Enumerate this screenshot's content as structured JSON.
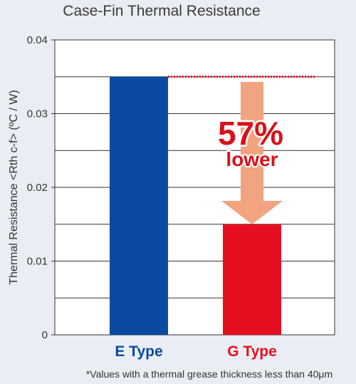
{
  "chart_data": {
    "type": "bar",
    "title": "Case-Fin Thermal Resistance",
    "ylabel": "Thermal Resistance <Rth c-f> (ºC / W)",
    "xlabel": "",
    "ylim": [
      0,
      0.04
    ],
    "yticks": [
      "0",
      "0.01",
      "0.02",
      "0.03",
      "0.04"
    ],
    "ytick_values": [
      0,
      0.01,
      0.02,
      0.03,
      0.04
    ],
    "grid": true,
    "categories": [
      "E Type",
      "G Type"
    ],
    "values": [
      0.035,
      0.015
    ],
    "bar_colors": [
      "#0b4aa2",
      "#e60f22"
    ],
    "category_label_colors": [
      "#0b4aa2",
      "#e60f22"
    ],
    "annotation": {
      "percent": "57%",
      "text": "lower",
      "reference_value": 0.035,
      "line_color": "#e60f22",
      "arrow_color": "#f2a380",
      "text_color": "#d7111b"
    },
    "footnote": "*Values with a thermal grease thickness less than 40μm"
  },
  "colors": {
    "background": "#eaeef4",
    "plot_background": "#ffffff",
    "grid": "#333333"
  }
}
